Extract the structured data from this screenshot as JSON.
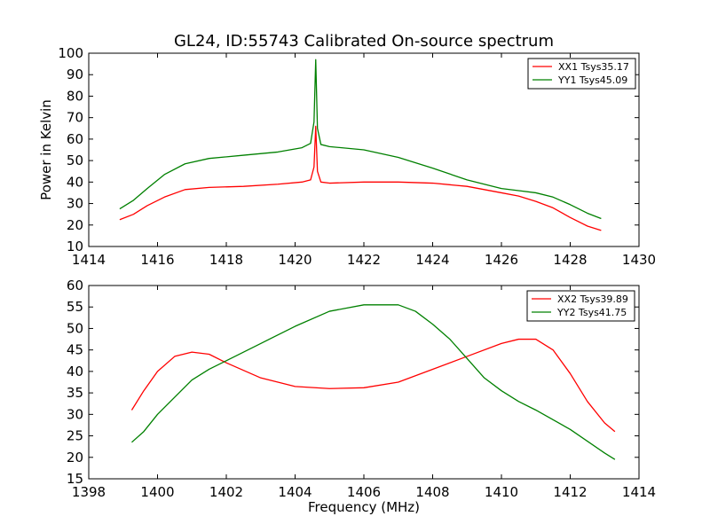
{
  "figure_title": "GL24, ID:55743 Calibrated On-source spectrum",
  "chart_data": [
    {
      "type": "line",
      "title": "GL24, ID:55743 Calibrated On-source spectrum",
      "xlabel": "",
      "ylabel": "Power in Kelvin",
      "xlim": [
        1414,
        1430
      ],
      "ylim": [
        10,
        100
      ],
      "xticks": [
        "1414",
        "1416",
        "1418",
        "1420",
        "1422",
        "1424",
        "1426",
        "1428",
        "1430"
      ],
      "yticks": [
        "10",
        "20",
        "30",
        "40",
        "50",
        "60",
        "70",
        "80",
        "90",
        "100"
      ],
      "grid": false,
      "legend_position": "top-right",
      "series": [
        {
          "name": "XX1 Tsys35.17",
          "color": "#ff0000",
          "x": [
            1414.9,
            1415.3,
            1415.7,
            1416.2,
            1416.8,
            1417.5,
            1418.5,
            1419.5,
            1420.2,
            1420.45,
            1420.55,
            1420.6,
            1420.65,
            1420.75,
            1421.0,
            1422.0,
            1423.0,
            1424.0,
            1425.0,
            1426.0,
            1426.5,
            1427.0,
            1427.5,
            1428.0,
            1428.5,
            1428.9
          ],
          "y": [
            22.5,
            25,
            29,
            33,
            36.5,
            37.5,
            38,
            39,
            40,
            41,
            47,
            66,
            45,
            40,
            39.5,
            40,
            40,
            39.5,
            38,
            35,
            33.5,
            31,
            28,
            23.5,
            19.5,
            17.5
          ]
        },
        {
          "name": "YY1 Tsys45.09",
          "color": "#008000",
          "x": [
            1414.9,
            1415.3,
            1415.7,
            1416.2,
            1416.8,
            1417.5,
            1418.5,
            1419.5,
            1420.2,
            1420.45,
            1420.55,
            1420.6,
            1420.65,
            1420.75,
            1421.0,
            1422.0,
            1423.0,
            1424.0,
            1425.0,
            1426.0,
            1426.5,
            1427.0,
            1427.5,
            1428.0,
            1428.5,
            1428.9
          ],
          "y": [
            27.5,
            31.5,
            37,
            43.5,
            48.5,
            51,
            52.5,
            54,
            56,
            58,
            68,
            97,
            65,
            57.5,
            56.5,
            55,
            51.5,
            46.5,
            41,
            37,
            36,
            35,
            33,
            29.5,
            25.5,
            23
          ]
        }
      ]
    },
    {
      "type": "line",
      "title": "",
      "xlabel": "Frequency (MHz)",
      "ylabel": "",
      "xlim": [
        1398,
        1414
      ],
      "ylim": [
        15,
        60
      ],
      "xticks": [
        "1398",
        "1400",
        "1402",
        "1404",
        "1406",
        "1408",
        "1410",
        "1412",
        "1414"
      ],
      "yticks": [
        "15",
        "20",
        "25",
        "30",
        "35",
        "40",
        "45",
        "50",
        "55",
        "60"
      ],
      "grid": false,
      "legend_position": "top-right",
      "series": [
        {
          "name": "XX2 Tsys39.89",
          "color": "#ff0000",
          "x": [
            1399.25,
            1399.6,
            1400.0,
            1400.5,
            1401.0,
            1401.5,
            1402.0,
            1403.0,
            1404.0,
            1405.0,
            1406.0,
            1407.0,
            1408.0,
            1409.0,
            1410.0,
            1410.5,
            1411.0,
            1411.5,
            1412.0,
            1412.5,
            1413.0,
            1413.3
          ],
          "y": [
            31,
            35.5,
            40,
            43.5,
            44.5,
            44,
            42,
            38.5,
            36.5,
            36,
            36.2,
            37.5,
            40.5,
            43.5,
            46.5,
            47.5,
            47.5,
            45,
            39.5,
            33,
            28,
            26
          ]
        },
        {
          "name": "YY2 Tsys41.75",
          "color": "#008000",
          "x": [
            1399.25,
            1399.6,
            1400.0,
            1400.5,
            1401.0,
            1401.5,
            1402.0,
            1403.0,
            1404.0,
            1405.0,
            1406.0,
            1407.0,
            1407.5,
            1408.0,
            1408.5,
            1409.0,
            1409.5,
            1410.0,
            1410.5,
            1411.0,
            1412.0,
            1413.0,
            1413.3
          ],
          "y": [
            23.5,
            26,
            30,
            34,
            38,
            40.5,
            42.5,
            46.5,
            50.5,
            54,
            55.5,
            55.5,
            54,
            51,
            47.5,
            43,
            38.5,
            35.5,
            33,
            31,
            26.5,
            21,
            19.5
          ]
        }
      ]
    }
  ]
}
